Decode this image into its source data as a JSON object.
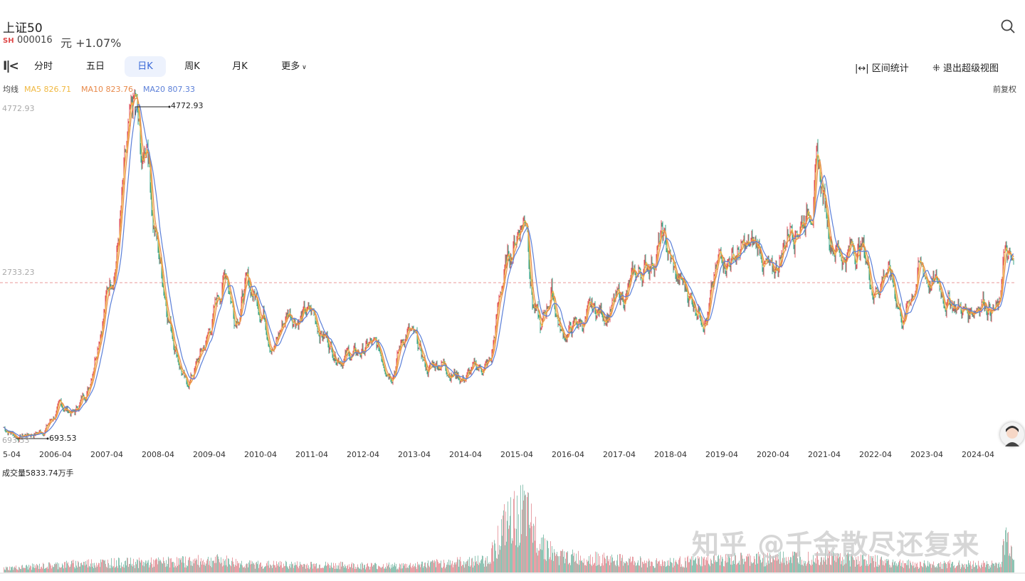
{
  "header": {
    "title": "上证50",
    "exchange": "SH",
    "code": "000016",
    "change": "元 +1.07%"
  },
  "tabs": [
    {
      "label": "分时"
    },
    {
      "label": "五日"
    },
    {
      "label": "日K",
      "active": true
    },
    {
      "label": "周K"
    },
    {
      "label": "月K"
    },
    {
      "label": "更多"
    }
  ],
  "toolbar": {
    "range_stats": "区间统计",
    "exit_super_view": "退出超级视图",
    "adjust": "前复权"
  },
  "ma": {
    "label": "均线",
    "ma5": "MA5 826.71",
    "ma10": "MA10 823.76",
    "ma20": "MA20 807.33"
  },
  "colors": {
    "ma5": "#f0b840",
    "ma10": "#e8894a",
    "ma20": "#5b7fd8",
    "up": "#e0505a",
    "down": "#3aa58a",
    "ref": "#e89a9a"
  },
  "watermark": "知乎 @千金散尽还复来",
  "chart_data": {
    "type": "line",
    "title": "上证50 日K",
    "y_axis_labels": [
      "4772.93",
      "2733.23",
      "693.53"
    ],
    "ylim": [
      693.53,
      4772.93
    ],
    "max_label": "4772.93",
    "min_label": "693.53",
    "x_tick_labels": [
      "5-04",
      "2006-04",
      "2007-04",
      "2008-04",
      "2009-04",
      "2010-04",
      "2011-04",
      "2012-04",
      "2013-04",
      "2014-04",
      "2015-04",
      "2016-04",
      "2017-04",
      "2018-04",
      "2019-04",
      "2020-04",
      "2021-04",
      "2022-04",
      "2023-04",
      "2024-04"
    ],
    "volume_label": "成交量5833.74万手",
    "series": [
      {
        "name": "price",
        "points": [
          [
            2005.25,
            832
          ],
          [
            2005.53,
            720
          ],
          [
            2006.01,
            788
          ],
          [
            2006.36,
            1078
          ],
          [
            2006.64,
            1008
          ],
          [
            2006.92,
            1358
          ],
          [
            2007.13,
            2146
          ],
          [
            2007.33,
            2671
          ],
          [
            2007.47,
            3109
          ],
          [
            2007.61,
            3897
          ],
          [
            2007.82,
            4685
          ],
          [
            2007.96,
            3897
          ],
          [
            2008.06,
            4466
          ],
          [
            2008.17,
            3459
          ],
          [
            2008.31,
            2846
          ],
          [
            2008.51,
            2146
          ],
          [
            2008.82,
            1314
          ],
          [
            2009.21,
            1883
          ],
          [
            2009.6,
            2803
          ],
          [
            2009.76,
            2233
          ],
          [
            2009.97,
            2584
          ],
          [
            2010.32,
            2321
          ],
          [
            2010.53,
            1839
          ],
          [
            2010.81,
            2277
          ],
          [
            2011.29,
            2190
          ],
          [
            2011.71,
            1796
          ],
          [
            2012.13,
            1708
          ],
          [
            2012.4,
            1839
          ],
          [
            2012.82,
            1577
          ],
          [
            2013.13,
            2058
          ],
          [
            2013.51,
            1533
          ],
          [
            2013.79,
            1664
          ],
          [
            2014.21,
            1445
          ],
          [
            2014.76,
            1621
          ],
          [
            2014.97,
            2584
          ],
          [
            2015.32,
            3372
          ],
          [
            2015.46,
            3503
          ],
          [
            2015.57,
            2496
          ],
          [
            2015.74,
            1971
          ],
          [
            2015.94,
            2540
          ],
          [
            2016.15,
            1971
          ],
          [
            2016.71,
            2190
          ],
          [
            2017.26,
            2365
          ],
          [
            2017.68,
            2715
          ],
          [
            2018.1,
            3153
          ],
          [
            2018.38,
            2627
          ],
          [
            2018.72,
            2409
          ],
          [
            2019.0,
            2277
          ],
          [
            2019.28,
            2978
          ],
          [
            2019.76,
            2978
          ],
          [
            2020.04,
            3022
          ],
          [
            2020.25,
            2584
          ],
          [
            2020.6,
            3372
          ],
          [
            2020.94,
            3547
          ],
          [
            2021.13,
            4029
          ],
          [
            2021.36,
            3284
          ],
          [
            2021.64,
            2978
          ],
          [
            2021.99,
            3109
          ],
          [
            2022.24,
            2540
          ],
          [
            2022.47,
            2846
          ],
          [
            2022.82,
            2146
          ],
          [
            2023.1,
            2803
          ],
          [
            2023.51,
            2540
          ],
          [
            2024.07,
            2233
          ],
          [
            2024.35,
            2496
          ],
          [
            2024.69,
            2233
          ],
          [
            2024.76,
            2978
          ],
          [
            2024.97,
            2671
          ]
        ]
      }
    ],
    "reference_line": 2610,
    "volume_envelope": [
      [
        2005.25,
        0.05
      ],
      [
        2007.0,
        0.12
      ],
      [
        2008.0,
        0.12
      ],
      [
        2009.5,
        0.15
      ],
      [
        2010.0,
        0.1
      ],
      [
        2013.0,
        0.08
      ],
      [
        2014.7,
        0.15
      ],
      [
        2015.0,
        0.55
      ],
      [
        2015.4,
        0.75
      ],
      [
        2015.6,
        0.5
      ],
      [
        2016.0,
        0.2
      ],
      [
        2018.0,
        0.12
      ],
      [
        2020.5,
        0.18
      ],
      [
        2021.2,
        0.2
      ],
      [
        2023.0,
        0.1
      ],
      [
        2024.7,
        0.1
      ],
      [
        2024.8,
        0.45
      ],
      [
        2024.97,
        0.2
      ]
    ]
  }
}
